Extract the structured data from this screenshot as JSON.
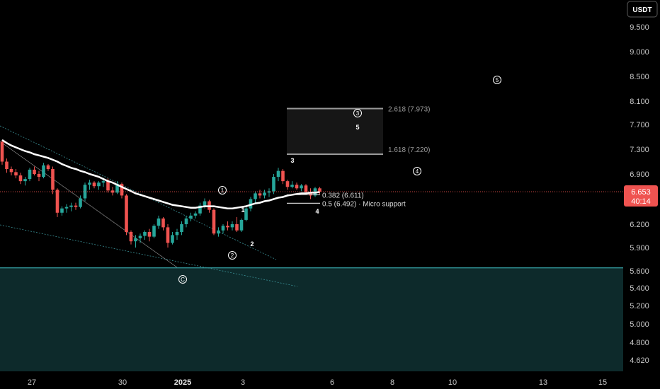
{
  "unit": "USDT",
  "colors": {
    "up": "#26a69a",
    "down": "#ef5350",
    "support_zone": "#0d2a2b",
    "support_border": "#2f8f93",
    "ema": "#ffffff",
    "last_price_bg": "#ef5350"
  },
  "y_ticks": [
    "9.500",
    "9.000",
    "8.500",
    "8.100",
    "7.700",
    "7.300",
    "6.900",
    "6.200",
    "5.900",
    "5.600",
    "5.400",
    "5.200",
    "5.000",
    "4.800",
    "4.620"
  ],
  "x_ticks": [
    {
      "label": "27",
      "bold": false
    },
    {
      "label": "30",
      "bold": false
    },
    {
      "label": "2025",
      "bold": true
    },
    {
      "label": "3",
      "bold": false
    },
    {
      "label": "6",
      "bold": false
    },
    {
      "label": "8",
      "bold": false
    },
    {
      "label": "10",
      "bold": false
    },
    {
      "label": "13",
      "bold": false
    },
    {
      "label": "15",
      "bold": false
    }
  ],
  "last_price": {
    "value": "6.653",
    "countdown": "40:14"
  },
  "fib_levels": [
    {
      "label": "2.618 (7.973)",
      "value": 7.973
    },
    {
      "label": "1.618 (7.220)",
      "value": 7.22
    },
    {
      "label": "0.382 (6.611)",
      "value": 6.611
    },
    {
      "label": "0.5 (6.492) · Micro support",
      "value": 6.492
    }
  ],
  "wave_labels_circled": [
    "1",
    "2",
    "3",
    "4",
    "5",
    "C"
  ],
  "wave_labels_plain": [
    "1",
    "2",
    "3",
    "4",
    "5"
  ],
  "support_zone": {
    "top": 5.64
  },
  "chart_data": {
    "type": "candlestick",
    "unit": "USDT",
    "last_price": 6.653,
    "candles": [
      [
        7.42,
        7.45,
        7.05,
        7.1
      ],
      [
        7.1,
        7.15,
        6.92,
        6.98
      ],
      [
        6.98,
        7.02,
        6.88,
        6.93
      ],
      [
        6.93,
        6.98,
        6.84,
        6.88
      ],
      [
        6.88,
        6.92,
        6.76,
        6.8
      ],
      [
        6.8,
        6.86,
        6.74,
        6.83
      ],
      [
        6.83,
        7.0,
        6.8,
        6.97
      ],
      [
        6.97,
        7.02,
        6.88,
        6.9
      ],
      [
        6.9,
        6.95,
        6.8,
        6.86
      ],
      [
        6.86,
        7.08,
        6.84,
        7.04
      ],
      [
        7.04,
        7.06,
        6.95,
        6.98
      ],
      [
        6.98,
        7.02,
        6.62,
        6.68
      ],
      [
        6.68,
        6.7,
        6.3,
        6.36
      ],
      [
        6.36,
        6.45,
        6.32,
        6.42
      ],
      [
        6.42,
        6.48,
        6.36,
        6.44
      ],
      [
        6.44,
        6.5,
        6.38,
        6.46
      ],
      [
        6.46,
        6.5,
        6.4,
        6.44
      ],
      [
        6.44,
        6.6,
        6.42,
        6.56
      ],
      [
        6.56,
        6.78,
        6.52,
        6.75
      ],
      [
        6.75,
        6.82,
        6.68,
        6.78
      ],
      [
        6.78,
        6.8,
        6.7,
        6.73
      ],
      [
        6.73,
        6.8,
        6.68,
        6.78
      ],
      [
        6.78,
        6.85,
        6.72,
        6.8
      ],
      [
        6.8,
        6.84,
        6.64,
        6.67
      ],
      [
        6.67,
        6.72,
        6.6,
        6.64
      ],
      [
        6.64,
        6.8,
        6.62,
        6.76
      ],
      [
        6.76,
        6.78,
        6.56,
        6.6
      ],
      [
        6.6,
        6.62,
        6.06,
        6.1
      ],
      [
        6.1,
        6.12,
        5.94,
        5.98
      ],
      [
        5.98,
        6.06,
        5.9,
        6.02
      ],
      [
        6.02,
        6.08,
        5.96,
        6.05
      ],
      [
        6.05,
        6.12,
        6.0,
        6.1
      ],
      [
        6.1,
        6.14,
        5.98,
        6.04
      ],
      [
        6.04,
        6.2,
        6.02,
        6.18
      ],
      [
        6.18,
        6.32,
        6.14,
        6.28
      ],
      [
        6.28,
        6.3,
        6.12,
        6.16
      ],
      [
        6.16,
        6.2,
        5.9,
        5.96
      ],
      [
        5.96,
        6.1,
        5.94,
        6.06
      ],
      [
        6.06,
        6.14,
        6.0,
        6.1
      ],
      [
        6.1,
        6.24,
        6.06,
        6.2
      ],
      [
        6.2,
        6.32,
        6.16,
        6.28
      ],
      [
        6.28,
        6.36,
        6.24,
        6.32
      ],
      [
        6.32,
        6.38,
        6.28,
        6.35
      ],
      [
        6.35,
        6.5,
        6.32,
        6.46
      ],
      [
        6.46,
        6.56,
        6.42,
        6.52
      ],
      [
        6.52,
        6.54,
        6.36,
        6.4
      ],
      [
        6.4,
        6.42,
        6.06,
        6.08
      ],
      [
        6.08,
        6.16,
        6.04,
        6.12
      ],
      [
        6.12,
        6.2,
        6.08,
        6.18
      ],
      [
        6.18,
        6.24,
        6.12,
        6.16
      ],
      [
        6.16,
        6.24,
        6.12,
        6.2
      ],
      [
        6.2,
        6.3,
        6.1,
        6.12
      ],
      [
        6.12,
        6.28,
        6.1,
        6.26
      ],
      [
        6.26,
        6.44,
        6.24,
        6.42
      ],
      [
        6.42,
        6.58,
        6.38,
        6.55
      ],
      [
        6.55,
        6.66,
        6.5,
        6.63
      ],
      [
        6.63,
        6.68,
        6.56,
        6.6
      ],
      [
        6.6,
        6.68,
        6.56,
        6.64
      ],
      [
        6.64,
        6.7,
        6.58,
        6.66
      ],
      [
        6.66,
        6.9,
        6.62,
        6.86
      ],
      [
        6.86,
        7.0,
        6.8,
        6.95
      ],
      [
        6.95,
        6.98,
        6.76,
        6.8
      ],
      [
        6.8,
        6.82,
        6.68,
        6.72
      ],
      [
        6.72,
        6.8,
        6.7,
        6.75
      ],
      [
        6.75,
        6.78,
        6.68,
        6.7
      ],
      [
        6.7,
        6.76,
        6.66,
        6.74
      ],
      [
        6.74,
        6.76,
        6.62,
        6.65
      ],
      [
        6.65,
        6.7,
        6.55,
        6.6
      ],
      [
        6.6,
        6.72,
        6.58,
        6.7
      ],
      [
        6.7,
        6.72,
        6.62,
        6.653
      ]
    ],
    "ema": [
      7.45,
      7.4,
      7.36,
      7.33,
      7.3,
      7.27,
      7.25,
      7.22,
      7.2,
      7.18,
      7.16,
      7.13,
      7.1,
      7.06,
      7.03,
      7.0,
      6.98,
      6.95,
      6.93,
      6.9,
      6.88,
      6.86,
      6.83,
      6.8,
      6.78,
      6.75,
      6.72,
      6.69,
      6.66,
      6.63,
      6.61,
      6.59,
      6.57,
      6.55,
      6.53,
      6.51,
      6.49,
      6.47,
      6.46,
      6.45,
      6.44,
      6.43,
      6.43,
      6.44,
      6.45,
      6.45,
      6.45,
      6.44,
      6.43,
      6.42,
      6.42,
      6.43,
      6.44,
      6.45,
      6.47,
      6.49,
      6.5,
      6.52,
      6.53,
      6.55,
      6.57,
      6.58,
      6.6,
      6.61,
      6.62,
      6.63,
      6.63,
      6.64,
      6.64,
      6.65
    ],
    "fib_extensions": [
      {
        "ratio": 2.618,
        "value": 7.973
      },
      {
        "ratio": 1.618,
        "value": 7.22
      },
      {
        "ratio": 0.382,
        "value": 6.611
      },
      {
        "ratio": 0.5,
        "value": 6.492
      }
    ],
    "annotations": [
      "Micro support"
    ]
  }
}
